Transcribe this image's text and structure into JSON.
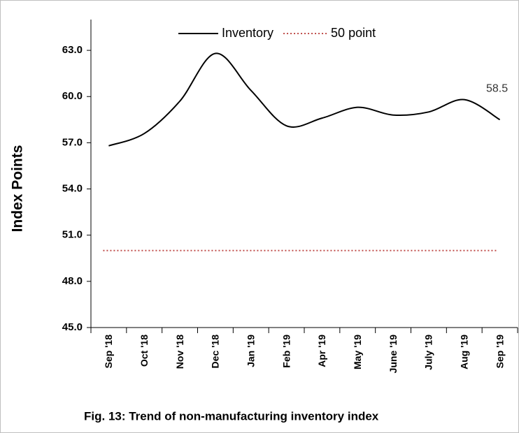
{
  "chart_data": {
    "type": "line",
    "title": "Fig. 13: Trend of non-manufacturing inventory index",
    "y_label": "Index Points",
    "categories": [
      "Sep '18",
      "Oct '18",
      "Nov '18",
      "Dec '18",
      "Jan '19",
      "Feb '19",
      "Apr '19",
      "May '19",
      "June '19",
      "July '19",
      "Aug '19",
      "Sep '19"
    ],
    "series": [
      {
        "name": "Inventory",
        "color": "#000000",
        "values": [
          56.8,
          57.6,
          59.7,
          62.8,
          60.4,
          58.1,
          58.6,
          59.3,
          58.8,
          59.0,
          59.8,
          58.5
        ],
        "value_labels": [
          null,
          null,
          null,
          null,
          null,
          null,
          null,
          null,
          null,
          null,
          null,
          "58.5"
        ]
      }
    ],
    "reference_lines": [
      {
        "name": "50 point",
        "value": 50,
        "color": "#c0504d",
        "style": "dotted"
      }
    ],
    "ylim": [
      45,
      65
    ],
    "yticks": [
      {
        "value": 45,
        "label": "45.0"
      },
      {
        "value": 48,
        "label": "48.0"
      },
      {
        "value": 51,
        "label": "51.0"
      },
      {
        "value": 54,
        "label": "54.0"
      },
      {
        "value": 57,
        "label": "57.0"
      },
      {
        "value": 60,
        "label": "60.0"
      },
      {
        "value": 63,
        "label": "63.0"
      }
    ],
    "legend": "top",
    "grid": false
  }
}
